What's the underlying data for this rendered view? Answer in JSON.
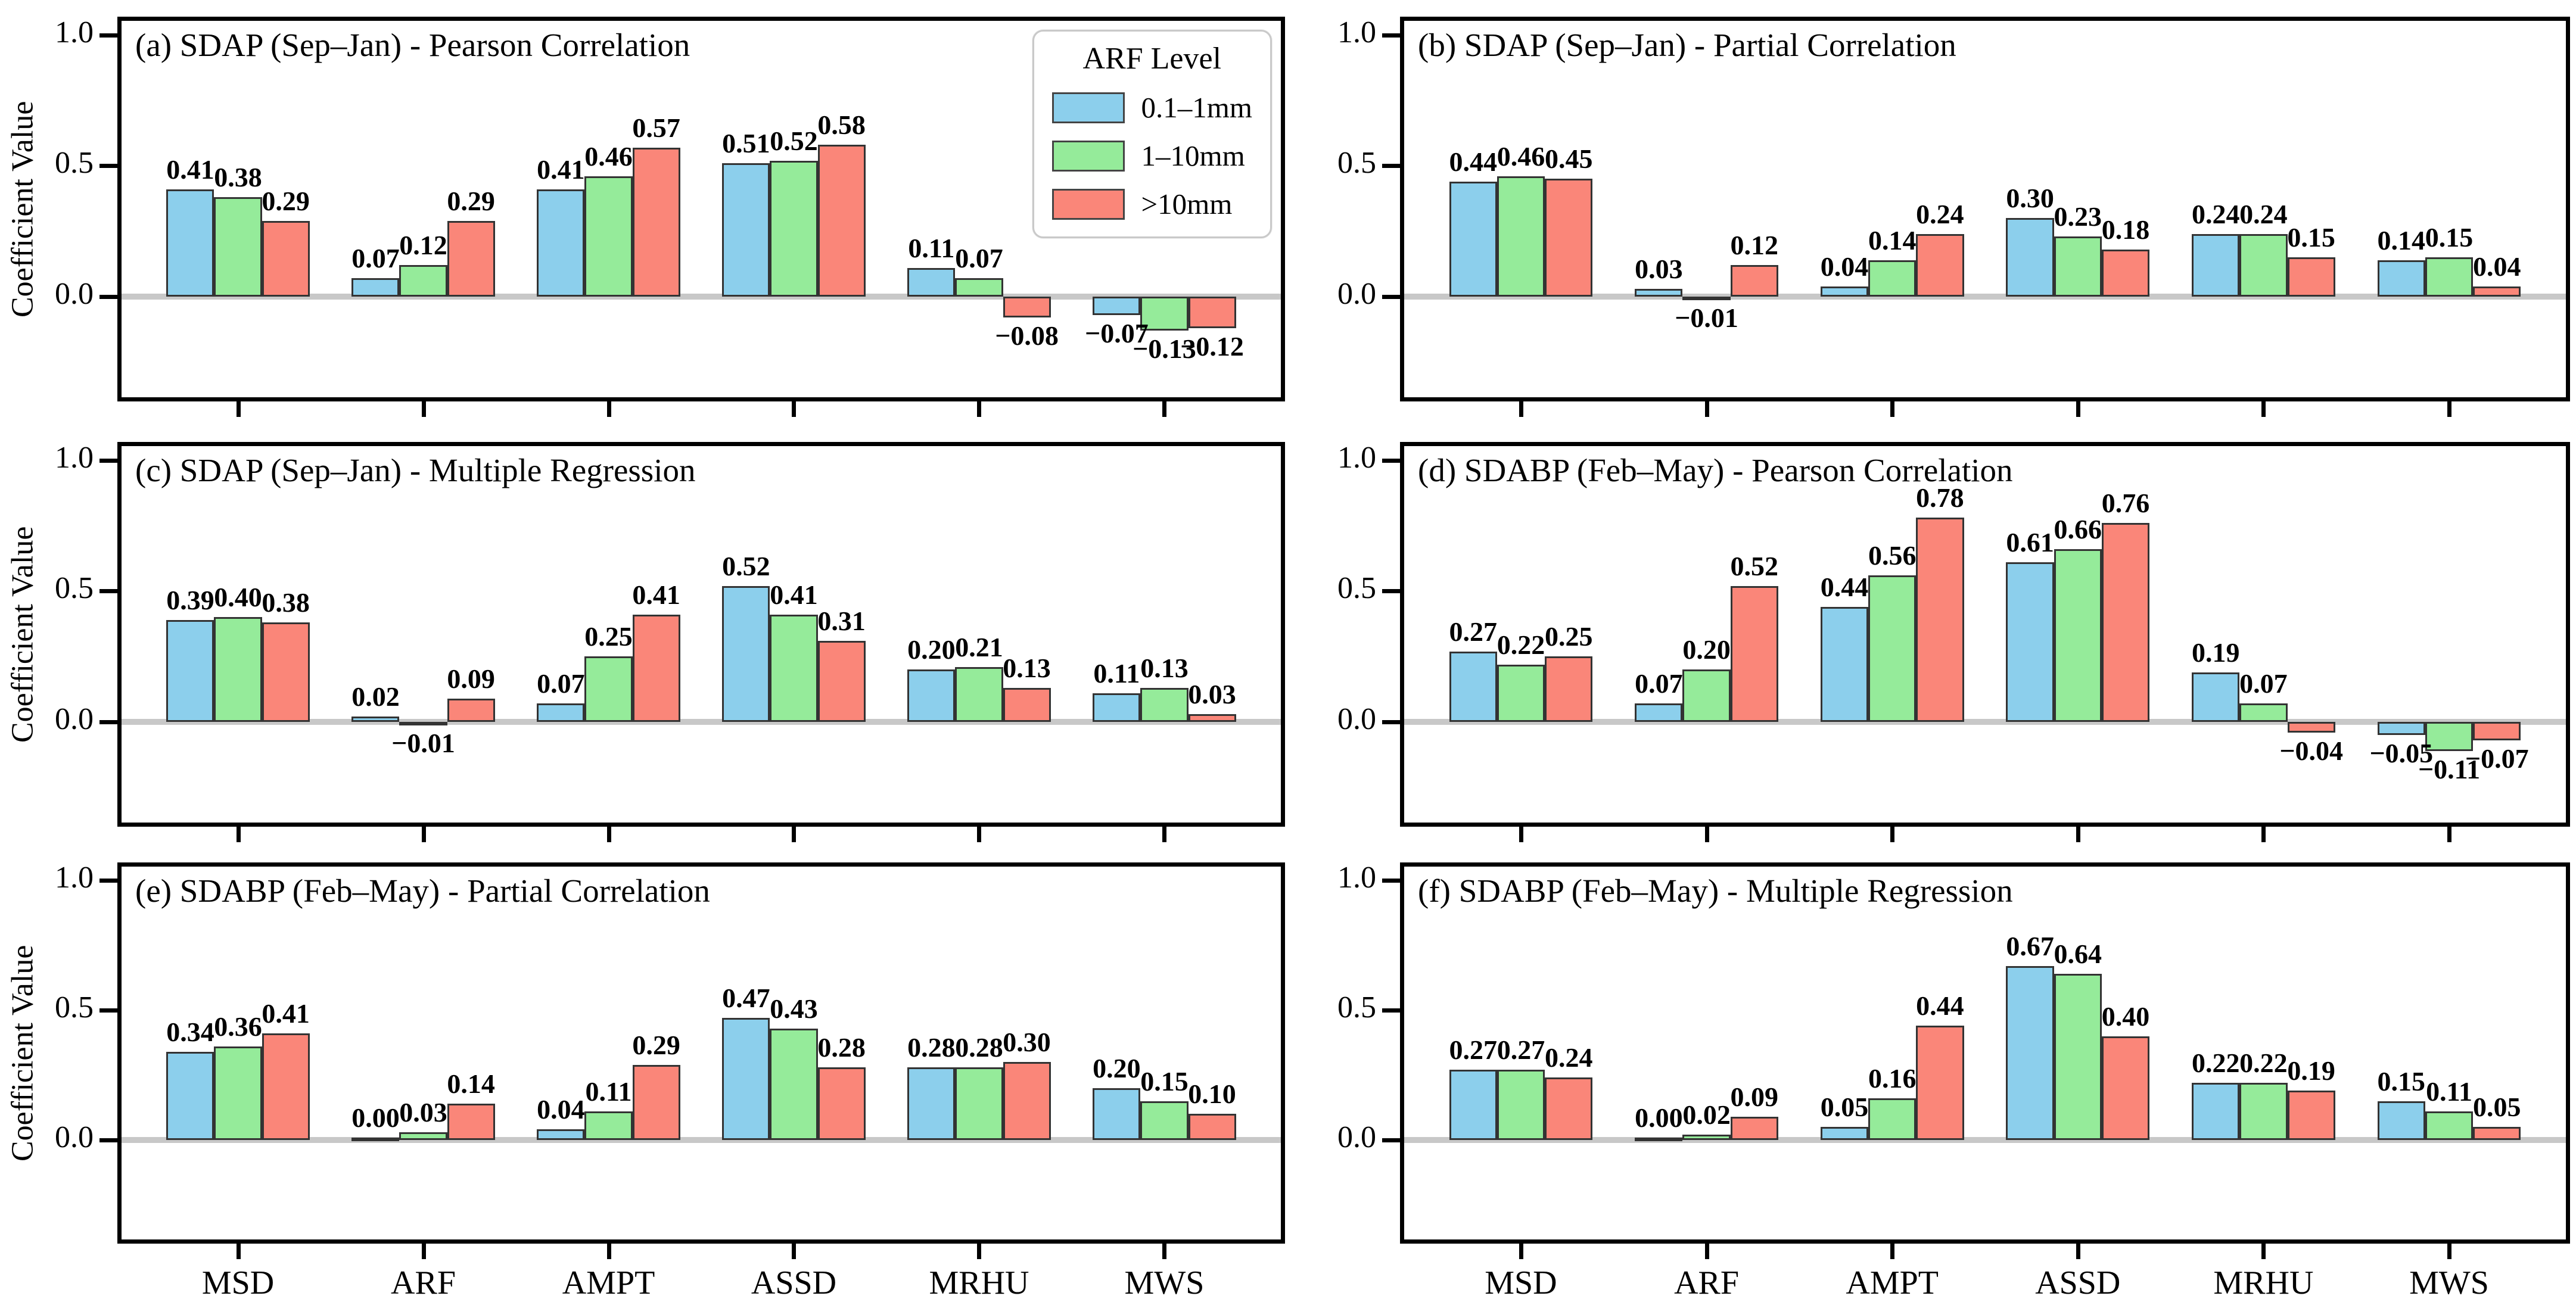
{
  "y_axis": {
    "label": "Coefficient Value",
    "tick_labels": [
      "1.0",
      "0.5",
      "0.0"
    ]
  },
  "x_axis": {
    "categories": [
      "MSD",
      "ARF",
      "AMPT",
      "ASSD",
      "MRHU",
      "MWS"
    ]
  },
  "legend": {
    "title": "ARF Level",
    "items": [
      {
        "label": "0.1–1mm",
        "color": "#8ccfec"
      },
      {
        "label": "1–10mm",
        "color": "#95eb9a"
      },
      {
        "label": ">10mm",
        "color": "#fa8679"
      }
    ]
  },
  "style": {
    "bar_edge_color": "#333333",
    "zero_line_color": "#c8c8c8",
    "accent_black": "#000000"
  },
  "chart_data": [
    {
      "panel": "a",
      "type": "bar",
      "title": "(a) SDAP (Sep–Jan) - Pearson Correlation",
      "categories": [
        "MSD",
        "ARF",
        "AMPT",
        "ASSD",
        "MRHU",
        "MWS"
      ],
      "series": [
        {
          "name": "0.1–1mm",
          "color": "#8ccfec",
          "values": [
            0.41,
            0.07,
            0.41,
            0.51,
            0.11,
            -0.07
          ]
        },
        {
          "name": "1–10mm",
          "color": "#95eb9a",
          "values": [
            0.38,
            0.12,
            0.46,
            0.52,
            0.07,
            -0.13
          ]
        },
        {
          "name": ">10mm",
          "color": "#fa8679",
          "values": [
            0.29,
            0.29,
            0.57,
            0.58,
            -0.08,
            -0.12
          ]
        }
      ],
      "ylim": [
        -0.4,
        1.07
      ],
      "yticks": [
        1.0,
        0.5,
        0.0
      ],
      "ylabel": "Coefficient Value",
      "show_xlabels": false,
      "show_legend": true,
      "grid": false
    },
    {
      "panel": "b",
      "type": "bar",
      "title": "(b) SDAP (Sep–Jan) - Partial Correlation",
      "categories": [
        "MSD",
        "ARF",
        "AMPT",
        "ASSD",
        "MRHU",
        "MWS"
      ],
      "series": [
        {
          "name": "0.1–1mm",
          "color": "#8ccfec",
          "values": [
            0.44,
            0.03,
            0.04,
            0.3,
            0.24,
            0.14
          ]
        },
        {
          "name": "1–10mm",
          "color": "#95eb9a",
          "values": [
            0.46,
            -0.01,
            0.14,
            0.23,
            0.24,
            0.15
          ]
        },
        {
          "name": ">10mm",
          "color": "#fa8679",
          "values": [
            0.45,
            0.12,
            0.24,
            0.18,
            0.15,
            0.04
          ]
        }
      ],
      "ylim": [
        -0.4,
        1.07
      ],
      "yticks": [
        1.0,
        0.5,
        0.0
      ],
      "ylabel": "",
      "show_xlabels": false,
      "show_legend": false,
      "grid": false
    },
    {
      "panel": "c",
      "type": "bar",
      "title": "(c) SDAP (Sep–Jan) - Multiple Regression",
      "categories": [
        "MSD",
        "ARF",
        "AMPT",
        "ASSD",
        "MRHU",
        "MWS"
      ],
      "series": [
        {
          "name": "0.1–1mm",
          "color": "#8ccfec",
          "values": [
            0.39,
            0.02,
            0.07,
            0.52,
            0.2,
            0.11
          ]
        },
        {
          "name": "1–10mm",
          "color": "#95eb9a",
          "values": [
            0.4,
            -0.01,
            0.25,
            0.41,
            0.21,
            0.13
          ]
        },
        {
          "name": ">10mm",
          "color": "#fa8679",
          "values": [
            0.38,
            0.09,
            0.41,
            0.31,
            0.13,
            0.03
          ]
        }
      ],
      "ylim": [
        -0.4,
        1.07
      ],
      "yticks": [
        1.0,
        0.5,
        0.0
      ],
      "ylabel": "Coefficient Value",
      "show_xlabels": false,
      "show_legend": false,
      "grid": false
    },
    {
      "panel": "d",
      "type": "bar",
      "title": "(d) SDABP (Feb–May) - Pearson Correlation",
      "categories": [
        "MSD",
        "ARF",
        "AMPT",
        "ASSD",
        "MRHU",
        "MWS"
      ],
      "series": [
        {
          "name": "0.1–1mm",
          "color": "#8ccfec",
          "values": [
            0.27,
            0.07,
            0.44,
            0.61,
            0.19,
            -0.05
          ]
        },
        {
          "name": "1–10mm",
          "color": "#95eb9a",
          "values": [
            0.22,
            0.2,
            0.56,
            0.66,
            0.07,
            -0.11
          ]
        },
        {
          "name": ">10mm",
          "color": "#fa8679",
          "values": [
            0.25,
            0.52,
            0.78,
            0.76,
            -0.04,
            -0.07
          ]
        }
      ],
      "ylim": [
        -0.4,
        1.07
      ],
      "yticks": [
        1.0,
        0.5,
        0.0
      ],
      "ylabel": "",
      "show_xlabels": false,
      "show_legend": false,
      "grid": false
    },
    {
      "panel": "e",
      "type": "bar",
      "title": "(e) SDABP (Feb–May) - Partial Correlation",
      "categories": [
        "MSD",
        "ARF",
        "AMPT",
        "ASSD",
        "MRHU",
        "MWS"
      ],
      "series": [
        {
          "name": "0.1–1mm",
          "color": "#8ccfec",
          "values": [
            0.34,
            0.0,
            0.04,
            0.47,
            0.28,
            0.2
          ]
        },
        {
          "name": "1–10mm",
          "color": "#95eb9a",
          "values": [
            0.36,
            0.03,
            0.11,
            0.43,
            0.28,
            0.15
          ]
        },
        {
          "name": ">10mm",
          "color": "#fa8679",
          "values": [
            0.41,
            0.14,
            0.29,
            0.28,
            0.3,
            0.1
          ]
        }
      ],
      "ylim": [
        -0.4,
        1.07
      ],
      "yticks": [
        1.0,
        0.5,
        0.0
      ],
      "ylabel": "Coefficient Value",
      "show_xlabels": true,
      "show_legend": false,
      "grid": false
    },
    {
      "panel": "f",
      "type": "bar",
      "title": "(f) SDABP (Feb–May) - Multiple Regression",
      "categories": [
        "MSD",
        "ARF",
        "AMPT",
        "ASSD",
        "MRHU",
        "MWS"
      ],
      "series": [
        {
          "name": "0.1–1mm",
          "color": "#8ccfec",
          "values": [
            0.27,
            0.0,
            0.05,
            0.67,
            0.22,
            0.15
          ]
        },
        {
          "name": "1–10mm",
          "color": "#95eb9a",
          "values": [
            0.27,
            0.02,
            0.16,
            0.64,
            0.22,
            0.11
          ]
        },
        {
          "name": ">10mm",
          "color": "#fa8679",
          "values": [
            0.24,
            0.09,
            0.44,
            0.4,
            0.19,
            0.05
          ]
        }
      ],
      "ylim": [
        -0.4,
        1.07
      ],
      "yticks": [
        1.0,
        0.5,
        0.0
      ],
      "ylabel": "",
      "show_xlabels": true,
      "show_legend": false,
      "grid": false
    }
  ]
}
